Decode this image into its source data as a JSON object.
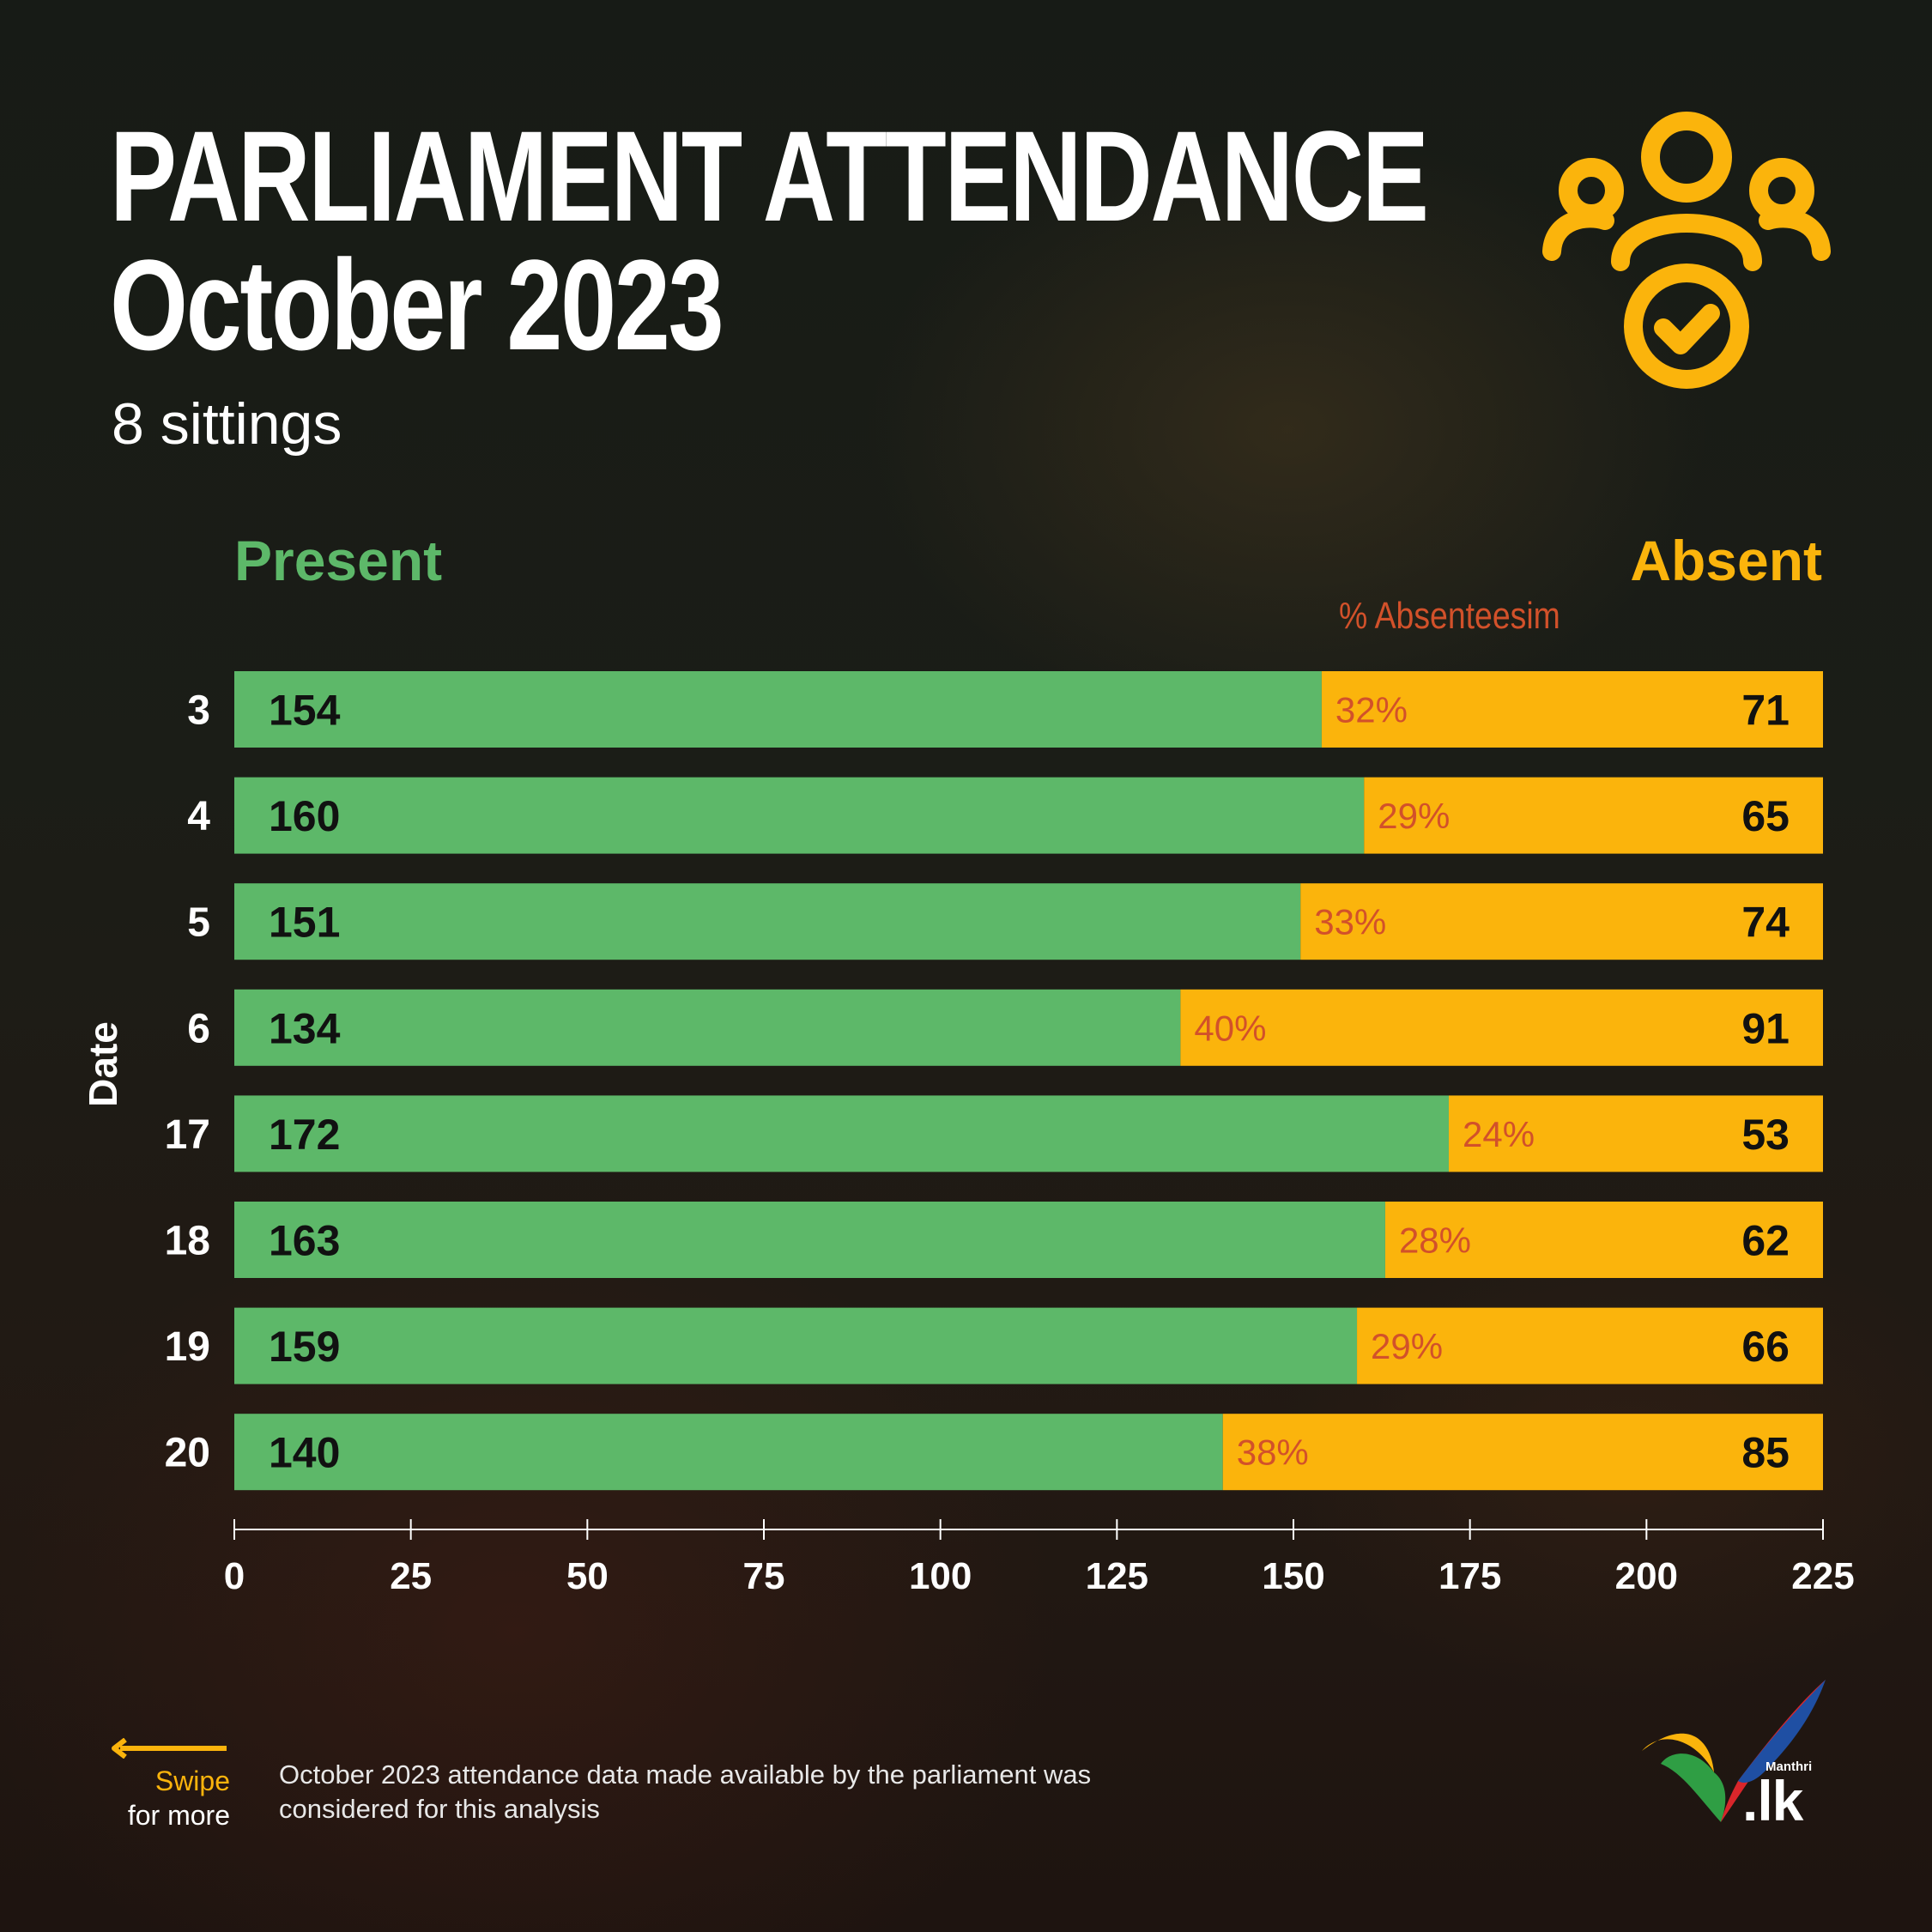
{
  "header": {
    "title_line1": "PARLIAMENT ATTENDANCE",
    "title_line2": "October 2023",
    "subtitle": "8 sittings"
  },
  "legend": {
    "present": "Present",
    "absent": "Absent",
    "absenteeism": "% Absenteesim"
  },
  "colors": {
    "present": "#5db869",
    "absent": "#fbb40c",
    "percent_text": "#d2512a",
    "value_text": "#111111"
  },
  "icons": {
    "header": "people-check-icon",
    "swipe": "arrow-left-icon",
    "logo": "manthri-checkmark-logo"
  },
  "chart_data": {
    "type": "bar",
    "orientation": "horizontal",
    "stacked": true,
    "ylabel": "Date",
    "categories": [
      "3",
      "4",
      "5",
      "6",
      "17",
      "18",
      "19",
      "20"
    ],
    "series": [
      {
        "name": "Present",
        "values": [
          154,
          160,
          151,
          134,
          172,
          163,
          159,
          140
        ]
      },
      {
        "name": "Absent",
        "values": [
          71,
          65,
          74,
          91,
          53,
          62,
          66,
          85
        ]
      }
    ],
    "absenteeism_pct": [
      "32%",
      "29%",
      "33%",
      "40%",
      "24%",
      "28%",
      "29%",
      "38%"
    ],
    "xlim": [
      0,
      225
    ],
    "xticks": [
      0,
      25,
      50,
      75,
      100,
      125,
      150,
      175,
      200,
      225
    ],
    "grid": false,
    "legend_position": "top"
  },
  "footer": {
    "swipe_line1": "Swipe",
    "swipe_line2": "for more",
    "note": "October 2023 attendance data made available by the parliament was considered for this analysis",
    "logo_small": "Manthri",
    "logo_big": ".lk"
  }
}
